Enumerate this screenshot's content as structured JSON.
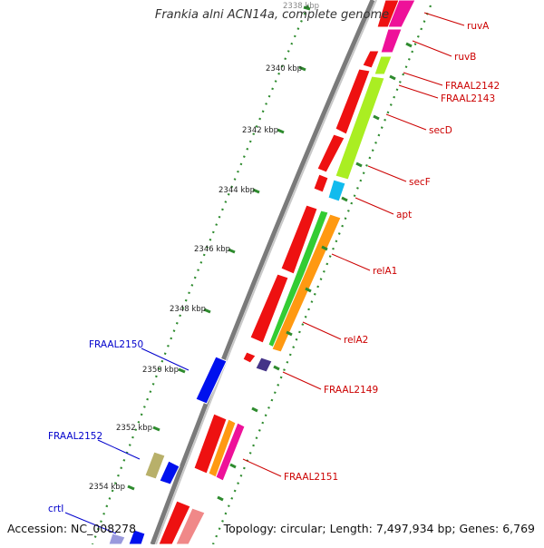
{
  "title": "Frankia alni ACN14a, complete genome",
  "footer": {
    "accession": "Accession: NC_008278",
    "summary": "Topology: circular; Length: 7,497,934 bp; Genes: 6,769"
  },
  "colors": {
    "backbone": "#7a7a7a",
    "tick": "#2e8b2e",
    "label_forward": "#cc0000",
    "label_reverse": "#0000cc"
  },
  "scale_labels": [
    {
      "kbp": 2338,
      "label": "2338 kbp"
    },
    {
      "kbp": 2340,
      "label": "2340 kbp"
    },
    {
      "kbp": 2342,
      "label": "2342 kbp"
    },
    {
      "kbp": 2344,
      "label": "2344 kbp"
    },
    {
      "kbp": 2346,
      "label": "2346 kbp"
    },
    {
      "kbp": 2348,
      "label": "2348 kbp"
    },
    {
      "kbp": 2350,
      "label": "2350 kbp"
    },
    {
      "kbp": 2352,
      "label": "2352 kbp"
    },
    {
      "kbp": 2354,
      "label": "2354 kbp"
    }
  ],
  "gene_labels": [
    {
      "name": "ruvA",
      "strand": "forward"
    },
    {
      "name": "ruvB",
      "strand": "forward"
    },
    {
      "name": "FRAAL2142",
      "strand": "forward"
    },
    {
      "name": "FRAAL2143",
      "strand": "forward"
    },
    {
      "name": "secD",
      "strand": "forward"
    },
    {
      "name": "secF",
      "strand": "forward"
    },
    {
      "name": "apt",
      "strand": "forward"
    },
    {
      "name": "relA1",
      "strand": "forward"
    },
    {
      "name": "relA2",
      "strand": "forward"
    },
    {
      "name": "FRAAL2149",
      "strand": "forward"
    },
    {
      "name": "FRAAL2151",
      "strand": "forward"
    },
    {
      "name": "FRAAL2150",
      "strand": "reverse"
    },
    {
      "name": "FRAAL2152",
      "strand": "reverse"
    },
    {
      "name": "crtI",
      "strand": "reverse"
    }
  ]
}
